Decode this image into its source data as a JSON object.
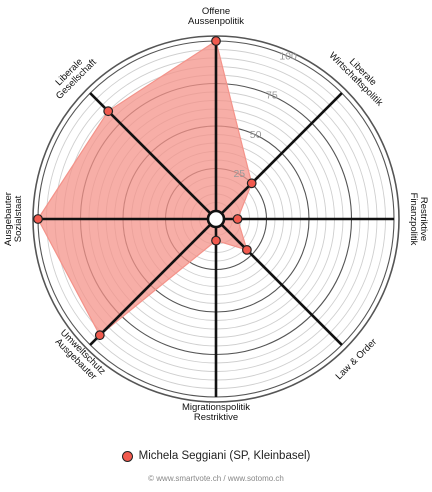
{
  "chart_data": {
    "type": "radar",
    "axes": [
      {
        "label_lines": [
          "Offene",
          "Aussenpolitik"
        ]
      },
      {
        "label_lines": [
          "Liberale",
          "Wirtschaftspolitik"
        ]
      },
      {
        "label_lines": [
          "Restriktive",
          "Finanzpolitik"
        ]
      },
      {
        "label_lines": [
          "Law & Order"
        ]
      },
      {
        "label_lines": [
          "Restriktive",
          "Migrationspolitik"
        ]
      },
      {
        "label_lines": [
          "Ausgebauter",
          "Umweltschutz"
        ]
      },
      {
        "label_lines": [
          "Ausgebauter",
          "Sozialstaat"
        ]
      },
      {
        "label_lines": [
          "Liberale",
          "Gesellschaft"
        ]
      }
    ],
    "series": [
      {
        "name": "Michela Seggiani (SP, Kleinbasel)",
        "values": [
          100,
          25,
          8,
          21,
          8,
          92,
          100,
          85
        ]
      }
    ],
    "range": [
      0,
      100
    ],
    "ring_step": 5,
    "tick_labels": [
      "25",
      "50",
      "75",
      "100"
    ],
    "fill_color": "#f4938a",
    "fill_opacity": 0.75,
    "point_color": "#f15a4e",
    "axis_color": "#111111",
    "ring_color": "#cfcfcf",
    "major_ring_color": "#555555"
  },
  "legend": {
    "label": "Michela Seggiani (SP, Kleinbasel)"
  },
  "footer": {
    "text": "© www.smartvote.ch / www.sotomo.ch"
  }
}
